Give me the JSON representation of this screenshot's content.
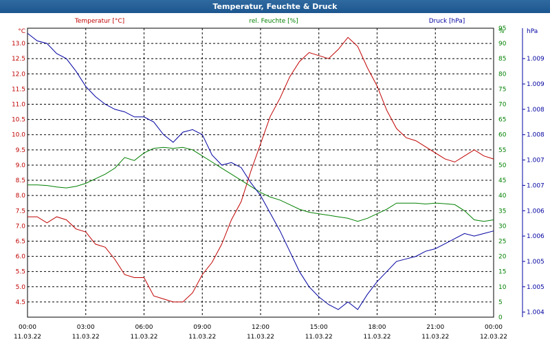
{
  "window": {
    "title": "Temperatur, Feuchte & Druck"
  },
  "chart_data": {
    "type": "line",
    "title": "Temperatur, Feuchte & Druck",
    "x": [
      "00:00",
      "03:00",
      "06:00",
      "09:00",
      "12:00",
      "15:00",
      "18:00",
      "21:00",
      "00:00"
    ],
    "x_dates": [
      "11.03.22",
      "11.03.22",
      "11.03.22",
      "11.03.22",
      "11.03.22",
      "11.03.22",
      "11.03.22",
      "11.03.22",
      "12.03.22"
    ],
    "xlim": [
      0,
      24
    ],
    "grid": true,
    "legend": "top",
    "axes": [
      {
        "side": "left-outer",
        "unit_label": "°C",
        "range": [
          4.0,
          13.5
        ],
        "ticks": [
          "4.5",
          "5.0",
          "5.5",
          "6.0",
          "6.5",
          "7.0",
          "7.5",
          "8.0",
          "8.5",
          "9.0",
          "9.5",
          "10.0",
          "10.5",
          "11.0",
          "11.5",
          "12.0",
          "12.5",
          "13.0"
        ],
        "color": "#c00000"
      },
      {
        "side": "right-inner",
        "unit_label": "%",
        "range": [
          0,
          95
        ],
        "ticks": [
          "0",
          "5",
          "10",
          "15",
          "20",
          "25",
          "30",
          "35",
          "40",
          "45",
          "50",
          "55",
          "60",
          "65",
          "70",
          "75",
          "80",
          "85",
          "90",
          "95"
        ],
        "color": "#008000"
      },
      {
        "side": "right-outer",
        "unit_label": "hPa",
        "range": [
          1003.9,
          1009.6
        ],
        "ticks": [
          "1.004",
          "1.005",
          "1.005",
          "1.006",
          "1.006",
          "1.007",
          "1.007",
          "1.008",
          "1.008",
          "1.009",
          "1.009"
        ],
        "color": "#0000a0"
      }
    ],
    "series": [
      {
        "name": "Temperatur [°C]",
        "axis": 0,
        "color": "#c00000",
        "points": [
          [
            0,
            7.3
          ],
          [
            0.5,
            7.3
          ],
          [
            1,
            7.1
          ],
          [
            1.5,
            7.3
          ],
          [
            2,
            7.2
          ],
          [
            2.5,
            6.9
          ],
          [
            3,
            6.8
          ],
          [
            3.5,
            6.4
          ],
          [
            4,
            6.3
          ],
          [
            4.5,
            5.9
          ],
          [
            5,
            5.4
          ],
          [
            5.5,
            5.3
          ],
          [
            6,
            5.3
          ],
          [
            6.5,
            4.7
          ],
          [
            7,
            4.6
          ],
          [
            7.5,
            4.5
          ],
          [
            8,
            4.5
          ],
          [
            8.5,
            4.8
          ],
          [
            9,
            5.4
          ],
          [
            9.5,
            5.8
          ],
          [
            10,
            6.4
          ],
          [
            10.5,
            7.2
          ],
          [
            11,
            7.8
          ],
          [
            11.5,
            8.8
          ],
          [
            12,
            9.7
          ],
          [
            12.5,
            10.6
          ],
          [
            13,
            11.2
          ],
          [
            13.5,
            11.9
          ],
          [
            14,
            12.4
          ],
          [
            14.5,
            12.7
          ],
          [
            15,
            12.6
          ],
          [
            15.5,
            12.5
          ],
          [
            16,
            12.8
          ],
          [
            16.5,
            13.2
          ],
          [
            17,
            12.9
          ],
          [
            17.5,
            12.2
          ],
          [
            18,
            11.6
          ],
          [
            18.5,
            10.8
          ],
          [
            19,
            10.2
          ],
          [
            19.5,
            9.9
          ],
          [
            20,
            9.8
          ],
          [
            20.5,
            9.6
          ],
          [
            21,
            9.4
          ],
          [
            21.5,
            9.2
          ],
          [
            22,
            9.1
          ],
          [
            22.5,
            9.3
          ],
          [
            23,
            9.5
          ],
          [
            23.5,
            9.3
          ],
          [
            24,
            9.2
          ]
        ]
      },
      {
        "name": "rel. Feuchte [%]",
        "axis": 1,
        "color": "#008000",
        "points": [
          [
            0,
            43.5
          ],
          [
            0.5,
            43.5
          ],
          [
            1,
            43.3
          ],
          [
            1.5,
            42.8
          ],
          [
            2,
            42.5
          ],
          [
            2.5,
            43
          ],
          [
            3,
            44
          ],
          [
            3.5,
            45.5
          ],
          [
            4,
            47
          ],
          [
            4.5,
            49
          ],
          [
            5,
            52.5
          ],
          [
            5.5,
            51.5
          ],
          [
            6,
            54
          ],
          [
            6.5,
            55.5
          ],
          [
            7,
            55.8
          ],
          [
            7.5,
            55.5
          ],
          [
            8,
            55.8
          ],
          [
            8.5,
            55
          ],
          [
            9,
            53
          ],
          [
            9.5,
            51
          ],
          [
            10,
            49
          ],
          [
            10.5,
            47
          ],
          [
            11,
            45
          ],
          [
            11.5,
            43
          ],
          [
            12,
            41
          ],
          [
            12.5,
            39.5
          ],
          [
            13,
            38.5
          ],
          [
            13.5,
            37
          ],
          [
            14,
            35.5
          ],
          [
            14.5,
            34.5
          ],
          [
            15,
            34
          ],
          [
            15.5,
            33.5
          ],
          [
            16,
            33
          ],
          [
            16.5,
            32.5
          ],
          [
            17,
            31.5
          ],
          [
            17.5,
            32.5
          ],
          [
            18,
            34
          ],
          [
            18.5,
            35.5
          ],
          [
            19,
            37.5
          ],
          [
            19.5,
            37.5
          ],
          [
            20,
            37.5
          ],
          [
            20.5,
            37.2
          ],
          [
            21,
            37.5
          ],
          [
            21.5,
            37.3
          ],
          [
            22,
            37
          ],
          [
            22.5,
            35
          ],
          [
            23,
            32
          ],
          [
            23.5,
            31.5
          ],
          [
            24,
            32
          ]
        ]
      },
      {
        "name": "Druck [hPa]",
        "axis": 2,
        "color": "#0000a0",
        "points": [
          [
            0,
            1009.5
          ],
          [
            0.5,
            1009.35
          ],
          [
            1,
            1009.3
          ],
          [
            1.5,
            1009.1
          ],
          [
            2,
            1009.0
          ],
          [
            2.5,
            1008.75
          ],
          [
            3,
            1008.45
          ],
          [
            3.5,
            1008.25
          ],
          [
            4,
            1008.1
          ],
          [
            4.5,
            1008.0
          ],
          [
            5,
            1007.95
          ],
          [
            5.5,
            1007.85
          ],
          [
            6,
            1007.85
          ],
          [
            6.5,
            1007.75
          ],
          [
            7,
            1007.5
          ],
          [
            7.5,
            1007.35
          ],
          [
            8,
            1007.55
          ],
          [
            8.5,
            1007.6
          ],
          [
            9,
            1007.5
          ],
          [
            9.5,
            1007.1
          ],
          [
            10,
            1006.9
          ],
          [
            10.5,
            1006.95
          ],
          [
            11,
            1006.85
          ],
          [
            11.5,
            1006.55
          ],
          [
            12,
            1006.3
          ],
          [
            12.5,
            1005.95
          ],
          [
            13,
            1005.6
          ],
          [
            13.5,
            1005.2
          ],
          [
            14,
            1004.8
          ],
          [
            14.5,
            1004.5
          ],
          [
            15,
            1004.3
          ],
          [
            15.5,
            1004.15
          ],
          [
            16,
            1004.05
          ],
          [
            16.5,
            1004.2
          ],
          [
            17,
            1004.05
          ],
          [
            17.5,
            1004.35
          ],
          [
            18,
            1004.6
          ],
          [
            18.5,
            1004.8
          ],
          [
            19,
            1005.0
          ],
          [
            19.5,
            1005.05
          ],
          [
            20,
            1005.1
          ],
          [
            20.5,
            1005.2
          ],
          [
            21,
            1005.25
          ],
          [
            21.5,
            1005.35
          ],
          [
            22,
            1005.45
          ],
          [
            22.5,
            1005.55
          ],
          [
            23,
            1005.5
          ],
          [
            23.5,
            1005.55
          ],
          [
            24,
            1005.6
          ]
        ]
      }
    ]
  }
}
